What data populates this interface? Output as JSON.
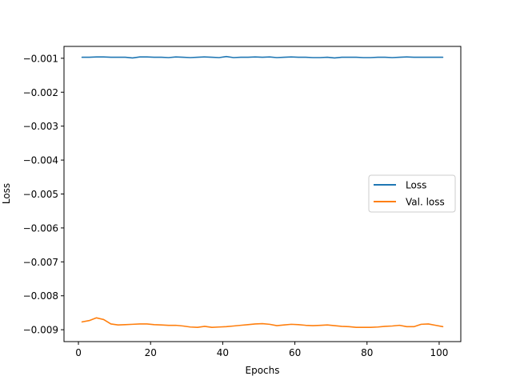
{
  "chart_data": {
    "type": "line",
    "title": "",
    "xlabel": "Epochs",
    "ylabel": "Loss",
    "xlim": [
      -4,
      106
    ],
    "ylim": [
      -0.00935,
      -0.00065
    ],
    "grid": false,
    "legend_position": "center-right",
    "x_ticks": [
      0,
      20,
      40,
      60,
      80,
      100
    ],
    "x_tick_labels": [
      "0",
      "20",
      "40",
      "60",
      "80",
      "100"
    ],
    "y_ticks": [
      -0.001,
      -0.002,
      -0.003,
      -0.004,
      -0.005,
      -0.006,
      -0.007,
      -0.008,
      -0.009
    ],
    "y_tick_labels": [
      "−0.001",
      "−0.002",
      "−0.003",
      "−0.004",
      "−0.005",
      "−0.006",
      "−0.007",
      "−0.008",
      "−0.009"
    ],
    "series": [
      {
        "name": "Loss",
        "color": "#1f77b4",
        "x": [
          1,
          3,
          5,
          7,
          9,
          11,
          13,
          15,
          17,
          19,
          21,
          23,
          25,
          27,
          29,
          31,
          33,
          35,
          37,
          39,
          41,
          43,
          45,
          47,
          49,
          51,
          53,
          55,
          57,
          59,
          61,
          63,
          65,
          67,
          69,
          71,
          73,
          75,
          77,
          79,
          81,
          83,
          85,
          87,
          89,
          91,
          93,
          95,
          97,
          99,
          101
        ],
        "y": [
          -0.00097,
          -0.00097,
          -0.00096,
          -0.00096,
          -0.00097,
          -0.00097,
          -0.00097,
          -0.00099,
          -0.00096,
          -0.00096,
          -0.00097,
          -0.00097,
          -0.00098,
          -0.00096,
          -0.00097,
          -0.00098,
          -0.00097,
          -0.00096,
          -0.00097,
          -0.00098,
          -0.00095,
          -0.00098,
          -0.00097,
          -0.00097,
          -0.00096,
          -0.00097,
          -0.00096,
          -0.00098,
          -0.00097,
          -0.00096,
          -0.00097,
          -0.00097,
          -0.00098,
          -0.00098,
          -0.00097,
          -0.00099,
          -0.00097,
          -0.00097,
          -0.00097,
          -0.00098,
          -0.00098,
          -0.00097,
          -0.00097,
          -0.00098,
          -0.00097,
          -0.00096,
          -0.00097,
          -0.00097,
          -0.00097,
          -0.00097,
          -0.00097
        ]
      },
      {
        "name": "Val. loss",
        "color": "#ff7f0e",
        "x": [
          1,
          3,
          5,
          7,
          9,
          11,
          13,
          15,
          17,
          19,
          21,
          23,
          25,
          27,
          29,
          31,
          33,
          35,
          37,
          39,
          41,
          43,
          45,
          47,
          49,
          51,
          53,
          55,
          57,
          59,
          61,
          63,
          65,
          67,
          69,
          71,
          73,
          75,
          77,
          79,
          81,
          83,
          85,
          87,
          89,
          91,
          93,
          95,
          97,
          99,
          101
        ],
        "y": [
          -0.00877,
          -0.00873,
          -0.00865,
          -0.0087,
          -0.00883,
          -0.00886,
          -0.00885,
          -0.00884,
          -0.00883,
          -0.00883,
          -0.00885,
          -0.00886,
          -0.00887,
          -0.00887,
          -0.00889,
          -0.00892,
          -0.00893,
          -0.0089,
          -0.00893,
          -0.00892,
          -0.00891,
          -0.00889,
          -0.00887,
          -0.00885,
          -0.00883,
          -0.00882,
          -0.00884,
          -0.00888,
          -0.00886,
          -0.00884,
          -0.00885,
          -0.00887,
          -0.00888,
          -0.00887,
          -0.00886,
          -0.00888,
          -0.0089,
          -0.00891,
          -0.00893,
          -0.00893,
          -0.00893,
          -0.00892,
          -0.0089,
          -0.00889,
          -0.00887,
          -0.00891,
          -0.00891,
          -0.00884,
          -0.00883,
          -0.00887,
          -0.00891
        ]
      }
    ]
  }
}
